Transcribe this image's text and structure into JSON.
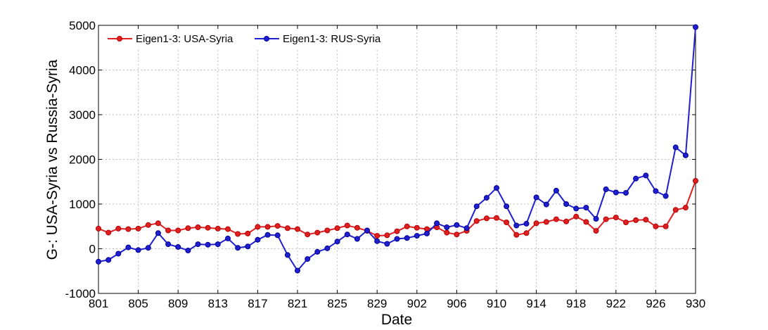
{
  "chart_data": {
    "type": "line",
    "title": "",
    "xlabel": "Date",
    "ylabel": "G-: USA-Syria vs Russia-Syria",
    "ylim": [
      -1000,
      5000
    ],
    "yticks": [
      -1000,
      0,
      1000,
      2000,
      3000,
      4000,
      5000
    ],
    "x_tick_labels": [
      "801",
      "805",
      "809",
      "813",
      "817",
      "821",
      "825",
      "829",
      "902",
      "906",
      "910",
      "914",
      "918",
      "922",
      "926",
      "930"
    ],
    "grid": true,
    "legend_position": "top-left",
    "series": [
      {
        "name": "Eigen1-3: USA-Syria",
        "color": "#e02020",
        "values": [
          450,
          360,
          450,
          440,
          450,
          530,
          570,
          410,
          410,
          460,
          480,
          470,
          450,
          440,
          330,
          340,
          490,
          490,
          510,
          460,
          440,
          320,
          360,
          410,
          460,
          520,
          470,
          400,
          290,
          300,
          390,
          500,
          470,
          440,
          480,
          360,
          320,
          400,
          620,
          680,
          690,
          590,
          310,
          350,
          570,
          600,
          660,
          610,
          720,
          600,
          400,
          660,
          700,
          590,
          640,
          650,
          500,
          500,
          870,
          920,
          1520
        ]
      },
      {
        "name": "Eigen1-3: RUS-Syria",
        "color": "#1f1fcf",
        "values": [
          -290,
          -250,
          -110,
          30,
          -30,
          20,
          350,
          100,
          40,
          -40,
          100,
          90,
          100,
          230,
          20,
          50,
          200,
          310,
          300,
          -140,
          -490,
          -230,
          -70,
          10,
          160,
          320,
          220,
          410,
          170,
          110,
          220,
          240,
          290,
          340,
          570,
          480,
          530,
          460,
          950,
          1140,
          1360,
          950,
          520,
          560,
          1150,
          990,
          1300,
          1000,
          900,
          920,
          670,
          1330,
          1260,
          1250,
          1570,
          1640,
          1290,
          1180,
          2270,
          2090,
          4960
        ]
      }
    ]
  }
}
